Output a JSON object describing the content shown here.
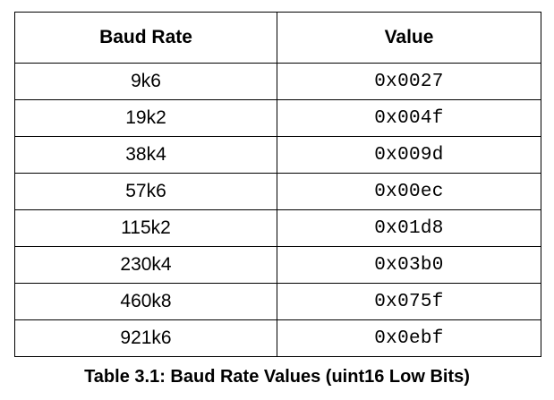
{
  "table": {
    "headers": {
      "baud_rate": "Baud Rate",
      "value": "Value"
    },
    "rows": [
      {
        "baud_rate": "9k6",
        "value": "0x0027"
      },
      {
        "baud_rate": "19k2",
        "value": "0x004f"
      },
      {
        "baud_rate": "38k4",
        "value": "0x009d"
      },
      {
        "baud_rate": "57k6",
        "value": "0x00ec"
      },
      {
        "baud_rate": "115k2",
        "value": "0x01d8"
      },
      {
        "baud_rate": "230k4",
        "value": "0x03b0"
      },
      {
        "baud_rate": "460k8",
        "value": "0x075f"
      },
      {
        "baud_rate": "921k6",
        "value": "0x0ebf"
      }
    ]
  },
  "caption": "Table 3.1: Baud Rate Values (uint16 Low Bits)"
}
